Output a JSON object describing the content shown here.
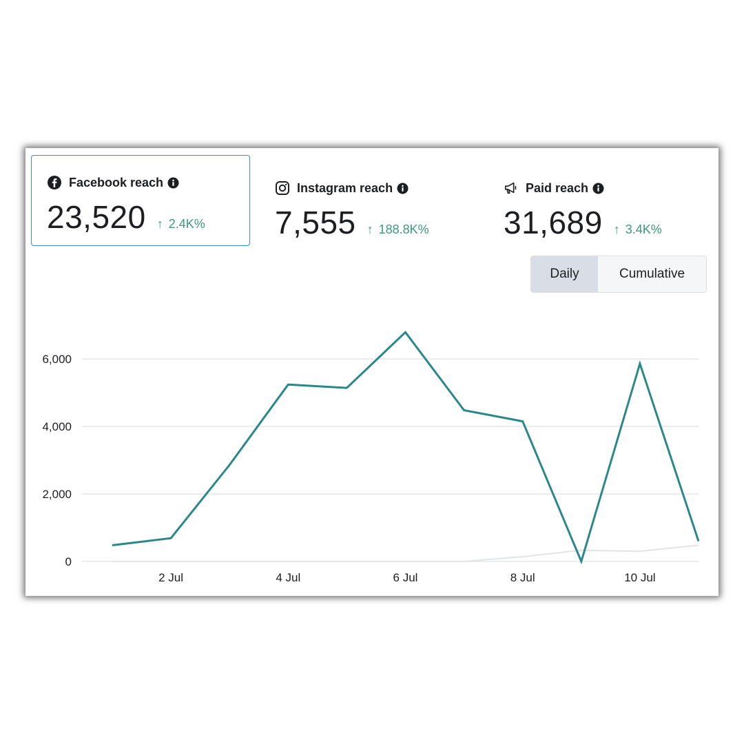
{
  "metrics": [
    {
      "label": "Facebook reach",
      "icon": "facebook-icon",
      "value": "23,520",
      "change": "2.4K%",
      "selected": true
    },
    {
      "label": "Instagram reach",
      "icon": "instagram-icon",
      "value": "7,555",
      "change": "188.8K%",
      "selected": false
    },
    {
      "label": "Paid reach",
      "icon": "megaphone-icon",
      "value": "31,689",
      "change": "3.4K%",
      "selected": false
    }
  ],
  "toggle": {
    "daily": "Daily",
    "cumulative": "Cumulative",
    "active": "daily"
  },
  "colors": {
    "series_main": "#2a878a",
    "series_secondary": "#e2e4e6",
    "positive": "#3a9a7a",
    "selected_border": "#3b8ad9"
  },
  "chart_data": {
    "type": "line",
    "x": [
      "1 Jul",
      "2 Jul",
      "3 Jul",
      "4 Jul",
      "5 Jul",
      "6 Jul",
      "7 Jul",
      "8 Jul",
      "9 Jul",
      "10 Jul",
      "11 Jul"
    ],
    "x_tick_labels": [
      "2 Jul",
      "4 Jul",
      "6 Jul",
      "8 Jul",
      "10 Jul"
    ],
    "y_tick_labels": [
      "0",
      "2,000",
      "4,000",
      "6,000"
    ],
    "ylim": [
      0,
      6000
    ],
    "grid": true,
    "series": [
      {
        "values": [
          480,
          690,
          2860,
          5240,
          5140,
          6790,
          4480,
          4150,
          0,
          5860,
          600
        ]
      },
      {
        "values": [
          0,
          0,
          0,
          0,
          0,
          0,
          0,
          140,
          330,
          300,
          480
        ]
      }
    ]
  }
}
